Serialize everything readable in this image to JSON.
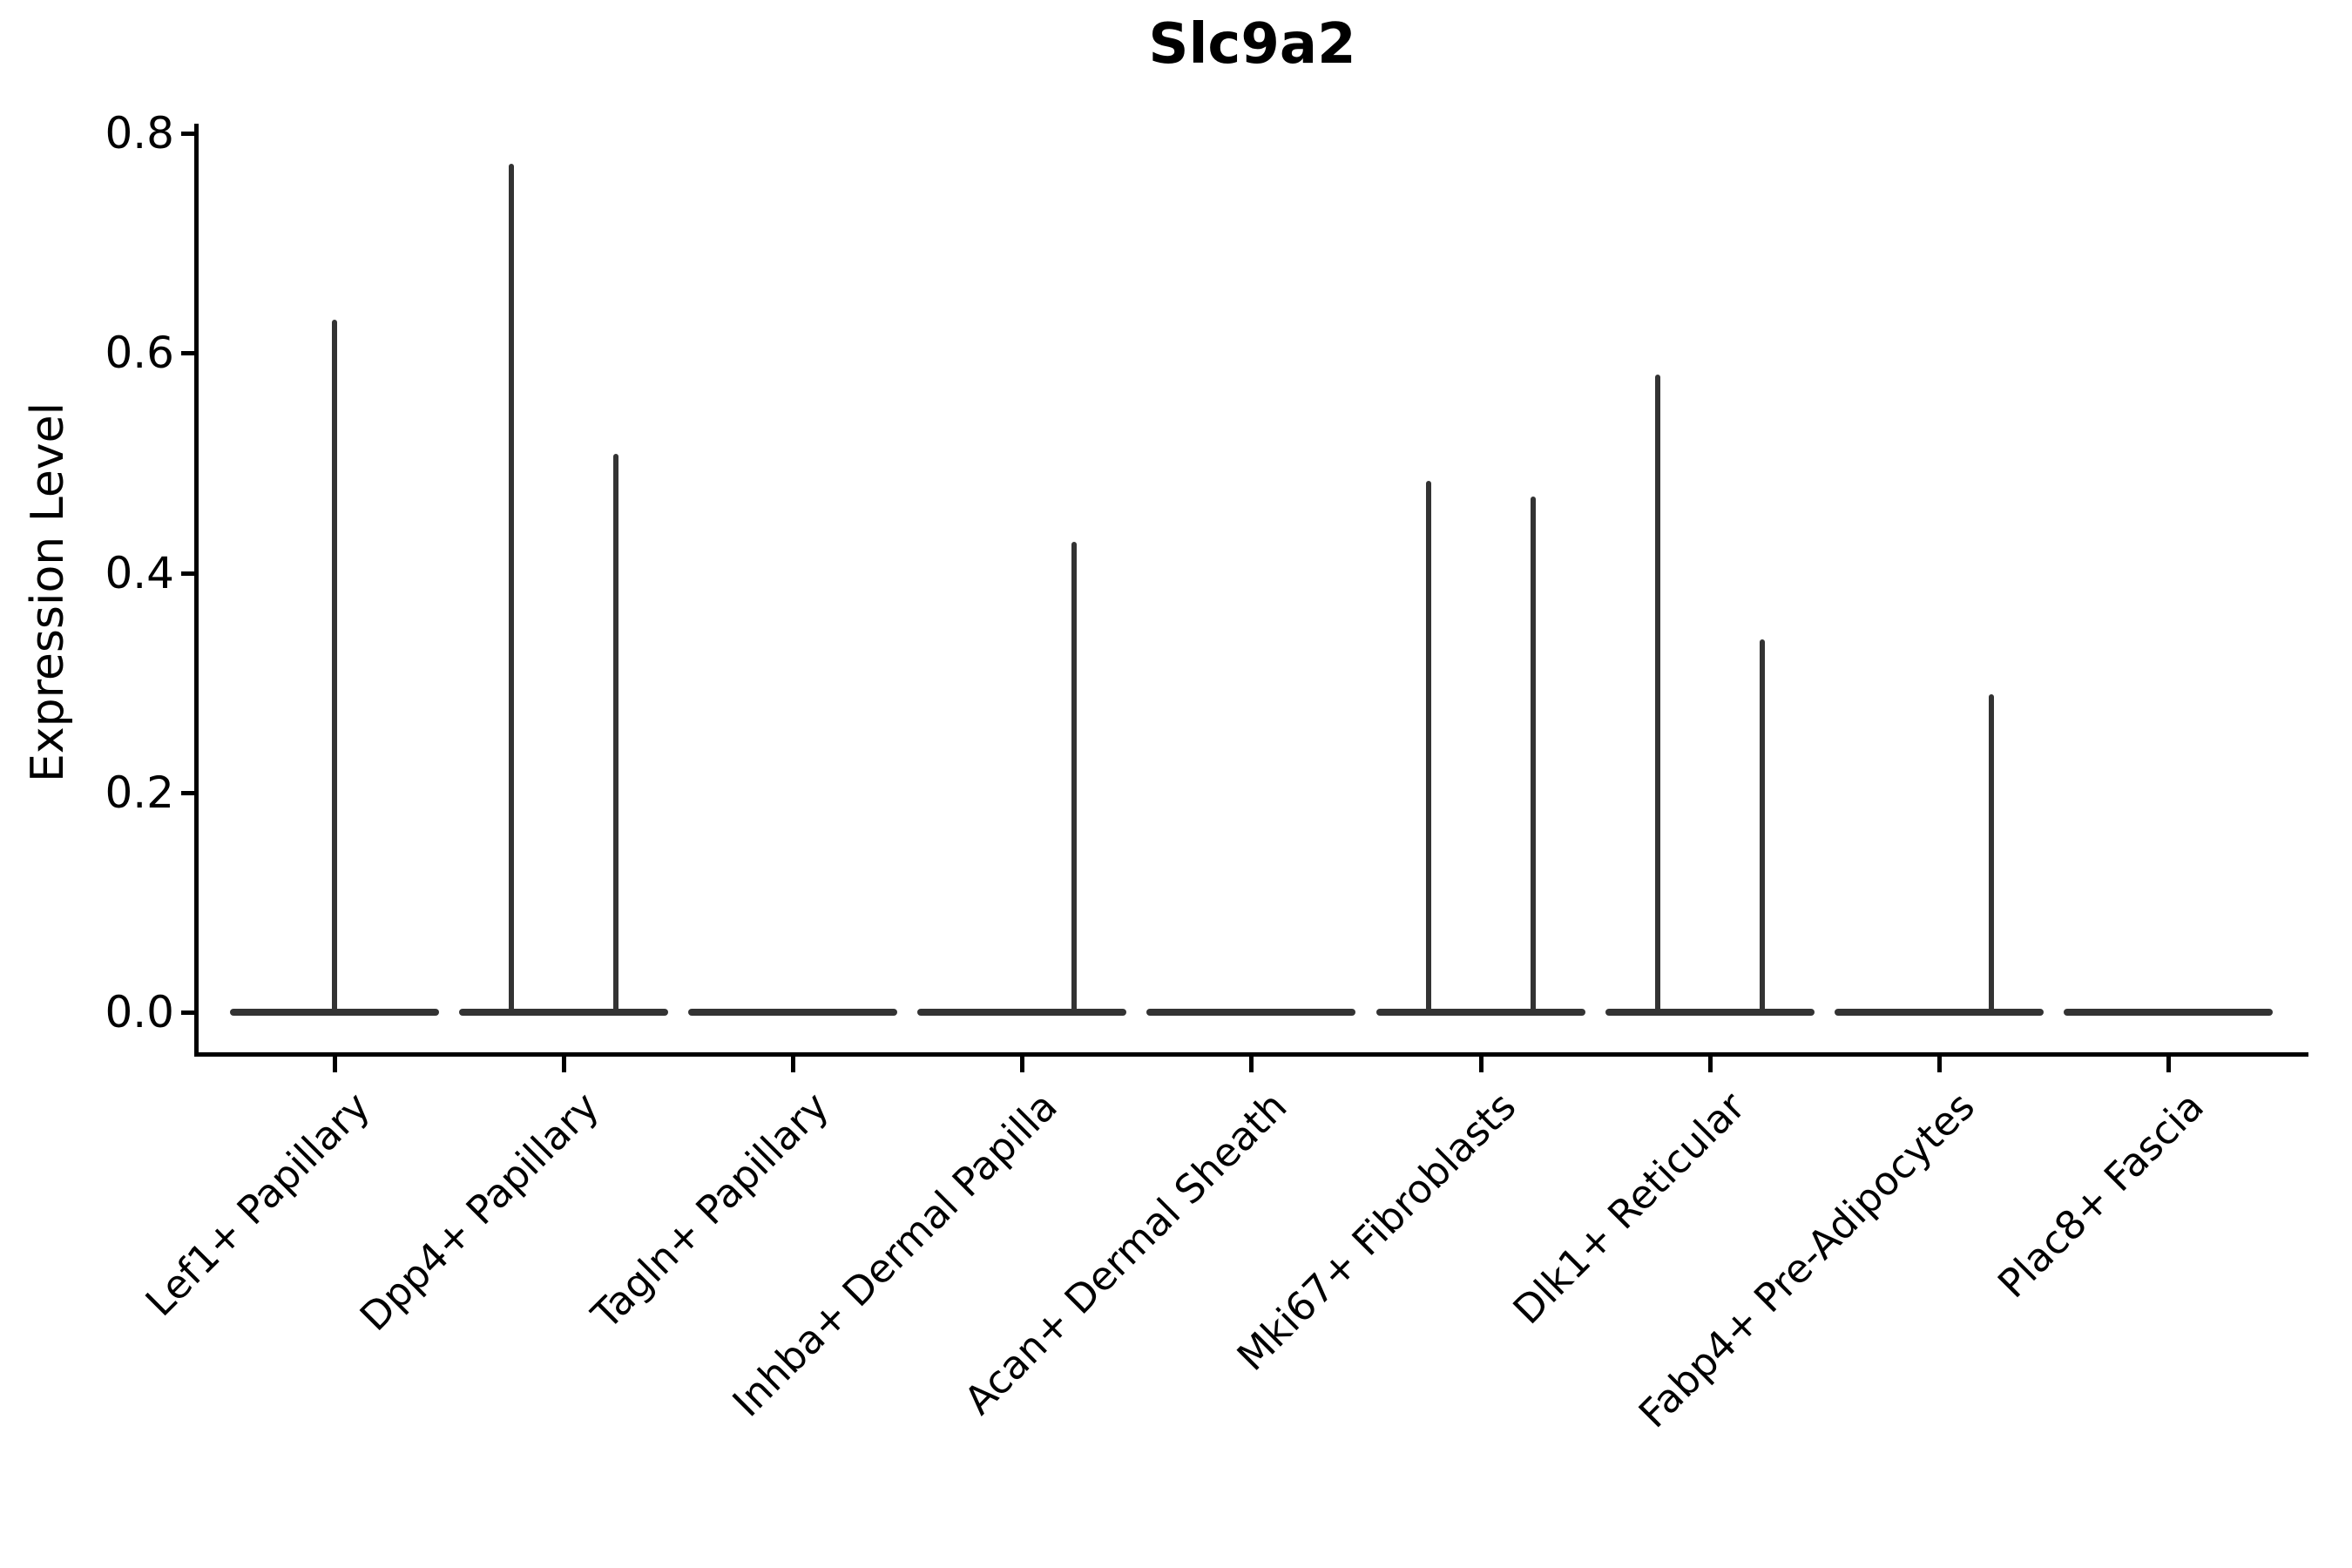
{
  "colors": {
    "violin": "#333333",
    "axis": "#000000",
    "text": "#000000",
    "background": "#ffffff"
  },
  "chart_data": {
    "type": "violin",
    "title": "Slc9a2",
    "xlabel": "",
    "ylabel": "Expression Level",
    "ylim": [
      0,
      0.8
    ],
    "grid": "off",
    "legend": "none",
    "yticks": [
      {
        "label": "0.0",
        "value": 0.0
      },
      {
        "label": "0.2",
        "value": 0.2
      },
      {
        "label": "0.4",
        "value": 0.4
      },
      {
        "label": "0.6",
        "value": 0.6
      },
      {
        "label": "0.8",
        "value": 0.8
      }
    ],
    "categories": [
      "Lef1+ Papillary",
      "Dpp4+ Papillary",
      "Tagln+ Papillary",
      "Inhba+ Dermal Papilla",
      "Acan+ Dermal Sheath",
      "Mki67+ Fibroblasts",
      "Dlk1+ Reticular",
      "Fabp4+ Pre-Adipocytes",
      "Plac8+ Fascia"
    ],
    "violins": [
      {
        "category": "Lef1+ Papillary",
        "baseline_density_at_zero": true,
        "spikes": [
          {
            "offset": "center",
            "max": 0.63
          }
        ]
      },
      {
        "category": "Dpp4+ Papillary",
        "baseline_density_at_zero": true,
        "spikes": [
          {
            "offset": "left",
            "max": 0.772
          },
          {
            "offset": "right",
            "max": 0.508
          }
        ]
      },
      {
        "category": "Tagln+ Papillary",
        "baseline_density_at_zero": true,
        "spikes": []
      },
      {
        "category": "Inhba+ Dermal Papilla",
        "baseline_density_at_zero": true,
        "spikes": [
          {
            "offset": "right",
            "max": 0.428
          }
        ]
      },
      {
        "category": "Acan+ Dermal Sheath",
        "baseline_density_at_zero": true,
        "spikes": []
      },
      {
        "category": "Mki67+ Fibroblasts",
        "baseline_density_at_zero": true,
        "spikes": [
          {
            "offset": "left",
            "max": 0.484
          },
          {
            "offset": "right",
            "max": 0.469
          }
        ]
      },
      {
        "category": "Dlk1+ Reticular",
        "baseline_density_at_zero": true,
        "spikes": [
          {
            "offset": "left",
            "max": 0.58
          },
          {
            "offset": "right",
            "max": 0.339
          }
        ]
      },
      {
        "category": "Fabp4+ Pre-Adipocytes",
        "baseline_density_at_zero": true,
        "spikes": [
          {
            "offset": "right",
            "max": 0.289
          }
        ]
      },
      {
        "category": "Plac8+ Fascia",
        "baseline_density_at_zero": true,
        "spikes": []
      }
    ]
  }
}
